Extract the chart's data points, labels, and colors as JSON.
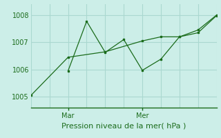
{
  "title": "Pression niveau de la mer( hPa )",
  "background_color": "#cceee8",
  "grid_color": "#aad8d0",
  "line_color": "#1a6b1a",
  "ylim": [
    1004.6,
    1008.4
  ],
  "yticks": [
    1005,
    1006,
    1007,
    1008
  ],
  "xlim": [
    0,
    10
  ],
  "x_mar": 2,
  "x_mer": 6,
  "series1_x": [
    0,
    2,
    4,
    6,
    7,
    8,
    9,
    10
  ],
  "series1_y": [
    1005.05,
    1006.45,
    1006.65,
    1007.05,
    1007.2,
    1007.2,
    1007.45,
    1008.0
  ],
  "series2_x": [
    2,
    3,
    4,
    5,
    6,
    7,
    8,
    9,
    10
  ],
  "series2_y": [
    1005.95,
    1007.77,
    1006.63,
    1007.1,
    1005.97,
    1006.38,
    1007.2,
    1007.35,
    1007.98
  ],
  "num_x_grid": 10
}
